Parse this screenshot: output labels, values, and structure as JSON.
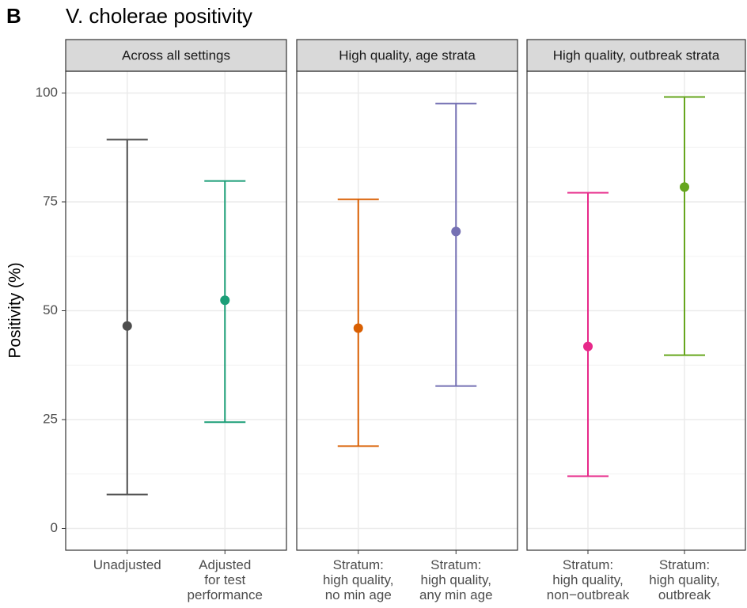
{
  "panel_label": "B",
  "title": "V. cholerae positivity",
  "ylabel": "Positivity (%)",
  "chart_data": [
    {
      "type": "errorbar",
      "title": "Across all settings",
      "categories": [
        [
          "Unadjusted"
        ],
        [
          "Adjusted",
          "for test",
          "performance"
        ]
      ],
      "values": [
        46.5,
        52.4
      ],
      "lower": [
        7.8,
        24.4
      ],
      "upper": [
        89.3,
        79.8
      ],
      "colors": [
        "#4d4d4d",
        "#1b9e77"
      ],
      "ylim": [
        -5,
        105
      ],
      "yticks": [
        0,
        25,
        50,
        75,
        100
      ],
      "grid": true
    },
    {
      "type": "errorbar",
      "title": "High quality, age strata",
      "categories": [
        [
          "Stratum:",
          "high quality,",
          "no min age"
        ],
        [
          "Stratum:",
          "high quality,",
          "any min age"
        ]
      ],
      "values": [
        46.0,
        68.2
      ],
      "lower": [
        18.9,
        32.7
      ],
      "upper": [
        75.6,
        97.6
      ],
      "colors": [
        "#d95f02",
        "#7570b3"
      ],
      "ylim": [
        -5,
        105
      ],
      "yticks": [
        0,
        25,
        50,
        75,
        100
      ],
      "grid": true
    },
    {
      "type": "errorbar",
      "title": "High quality, outbreak strata",
      "categories": [
        [
          "Stratum:",
          "high quality,",
          "non−outbreak"
        ],
        [
          "Stratum:",
          "high quality,",
          "outbreak"
        ]
      ],
      "values": [
        41.8,
        78.4
      ],
      "lower": [
        12.0,
        39.8
      ],
      "upper": [
        77.1,
        99.1
      ],
      "colors": [
        "#e7298a",
        "#66a61e"
      ],
      "ylim": [
        -5,
        105
      ],
      "yticks": [
        0,
        25,
        50,
        75,
        100
      ],
      "grid": true
    }
  ]
}
